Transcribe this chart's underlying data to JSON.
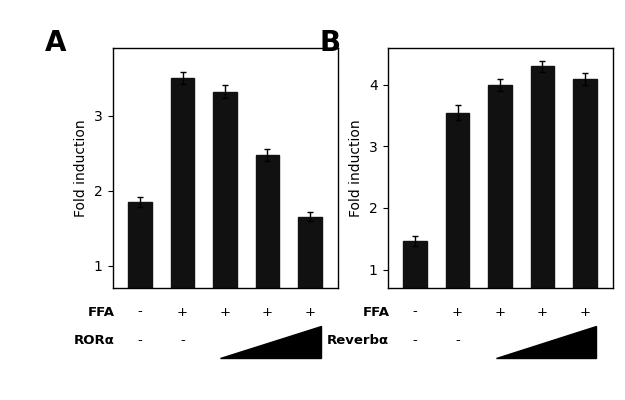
{
  "panel_A": {
    "values": [
      1.85,
      3.5,
      3.32,
      2.47,
      1.65
    ],
    "errors": [
      0.07,
      0.08,
      0.09,
      0.08,
      0.06
    ],
    "ylabel": "Fold induction",
    "ylim": [
      0.7,
      3.9
    ],
    "yticks": [
      1,
      2,
      3
    ],
    "ffa_labels": [
      "-",
      "+",
      "+",
      "+",
      "+"
    ],
    "row2_labels": [
      "-",
      "-",
      "",
      "",
      ""
    ],
    "label_row1": "FFA",
    "label_row2": "RORα",
    "panel_label": "A"
  },
  "panel_B": {
    "values": [
      1.47,
      3.55,
      4.0,
      4.3,
      4.1
    ],
    "errors": [
      0.08,
      0.12,
      0.1,
      0.09,
      0.1
    ],
    "ylabel": "Fold induction",
    "ylim": [
      0.7,
      4.6
    ],
    "yticks": [
      1,
      2,
      3,
      4
    ],
    "ffa_labels": [
      "-",
      "+",
      "+",
      "+",
      "+"
    ],
    "row2_labels": [
      "-",
      "-",
      "",
      "",
      ""
    ],
    "label_row1": "FFA",
    "label_row2": "Reverbα",
    "panel_label": "B"
  },
  "bar_color": "#111111",
  "bar_width": 0.55,
  "background_color": "#ffffff",
  "label_fontsize": 9.5,
  "panel_label_fontsize": 20
}
